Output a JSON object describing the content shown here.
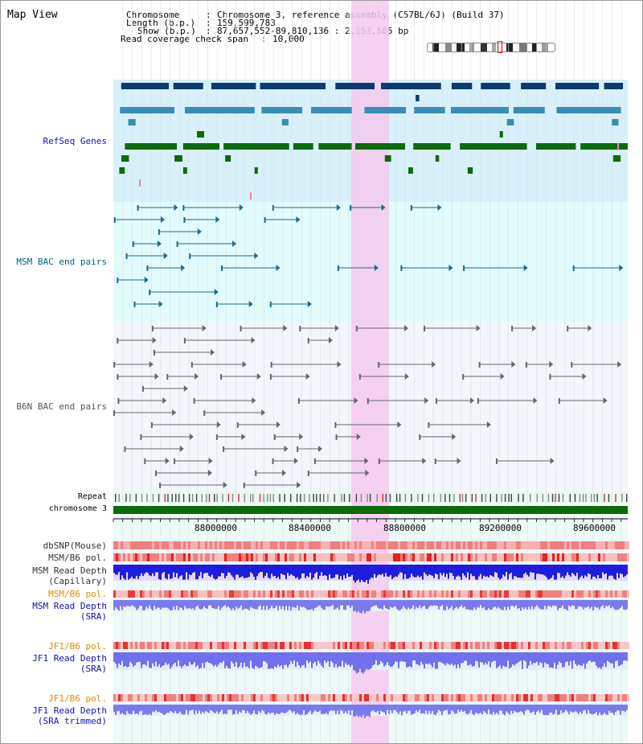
{
  "title": "Map View",
  "header": {
    "chromosome_key": "Chromosome",
    "chromosome_value": "Chromosome 3, reference assembly (C57BL/6J) (Build 37)",
    "length_key": "Length (b.p.)",
    "length_value": "159,599,783",
    "show_key": "Show (b.p.)",
    "show_value": "87,657,552-89,810,136 : 2,152,585 bp",
    "coverage_key": "Read coverage check span",
    "coverage_value": "10,000"
  },
  "tracks": {
    "refseq": "RefSeq Genes",
    "msm_bac": "MSM BAC end pairs",
    "b6n_bac": "B6N BAC end pairs",
    "repeat": "Repeat",
    "chromosome": "chromosome 3",
    "dbsnp": "dbSNP(Mouse)",
    "msm_b6_pol": "MSM/B6 pol.",
    "msm_read_depth_cap_1": "MSM Read Depth",
    "msm_read_depth_cap_2": "(Capillary)",
    "msm_b6_pol_2": "MSM/B6 pol.",
    "msm_read_depth_sra_1": "MSM Read Depth",
    "msm_read_depth_sra_2": "(SRA)",
    "jf1_b6_pol": "JF1/B6 pol.",
    "jf1_read_depth_sra_1": "JF1 Read Depth",
    "jf1_read_depth_sra_2": "(SRA)",
    "jf1_b6_pol_2": "JF1/B6 pol.",
    "jf1_read_depth_trim_1": "JF1 Read Depth",
    "jf1_read_depth_trim_2": "(SRA trimmed)"
  },
  "axis_ticks": [
    "88000000",
    "88400000",
    "88800000",
    "89200000",
    "89600000"
  ],
  "colors": {
    "highlight": "#f7c8ef",
    "refseq_bg": "#d8f0fa",
    "bac_bg": "#e2fbfb",
    "b6n_bg": "#f3f6fb",
    "chromosome_bar": "#0b6b0b",
    "refseq_label": "#1010c0",
    "bac_label": "#006677",
    "b6n_label": "#555555",
    "pol_orange": "#e08a00",
    "depth_blue": "#1010b0"
  }
}
